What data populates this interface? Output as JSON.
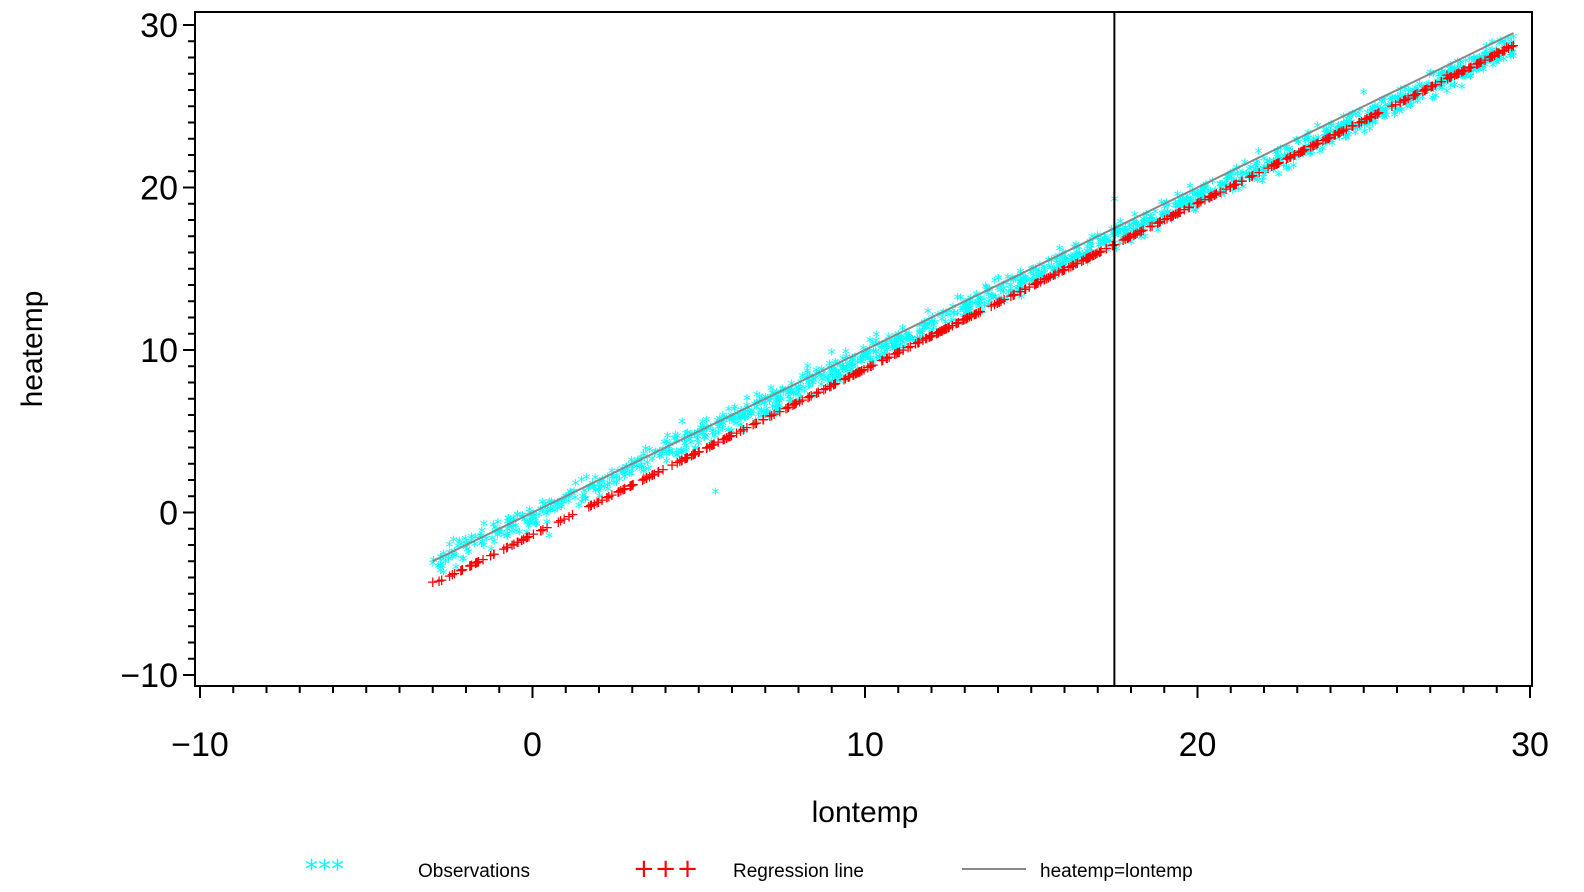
{
  "chart_data": {
    "type": "scatter",
    "xlabel": "lontemp",
    "ylabel": "heatemp",
    "xlim": [
      -10,
      30
    ],
    "ylim": [
      -10,
      30
    ],
    "xticks": [
      -10,
      0,
      10,
      20,
      30
    ],
    "yticks": [
      -10,
      0,
      10,
      20,
      30
    ],
    "grid": false,
    "reference_line_x": 17.5,
    "legend_position": "bottom",
    "series": [
      {
        "name": "Observations",
        "kind": "scatter",
        "marker": "*",
        "color": "#00ffff",
        "approx_relation": "heatemp ≈ 0.98·lontemp − 0.3 (±1.5)",
        "x_range": [
          -3,
          29.5
        ],
        "points_sample": [
          [
            -3.0,
            -3.2
          ],
          [
            -2.0,
            -2.2
          ],
          [
            -1.0,
            -1.3
          ],
          [
            0.0,
            -0.4
          ],
          [
            0.5,
            -1.5
          ],
          [
            1.0,
            0.9
          ],
          [
            2.0,
            1.7
          ],
          [
            3.0,
            2.6
          ],
          [
            4.0,
            3.8
          ],
          [
            4.5,
            5.5
          ],
          [
            5.0,
            4.2
          ],
          [
            5.5,
            1.2
          ],
          [
            6.0,
            5.8
          ],
          [
            7.0,
            6.9
          ],
          [
            8.0,
            7.6
          ],
          [
            9.0,
            9.8
          ],
          [
            10.0,
            9.5
          ],
          [
            11.0,
            10.9
          ],
          [
            12.0,
            11.6
          ],
          [
            13.0,
            12.8
          ],
          [
            14.0,
            13.7
          ],
          [
            15.0,
            14.9
          ],
          [
            16.0,
            15.6
          ],
          [
            17.0,
            16.8
          ],
          [
            17.5,
            19.2
          ],
          [
            18.0,
            17.6
          ],
          [
            19.0,
            18.9
          ],
          [
            20.0,
            19.5
          ],
          [
            21.0,
            20.8
          ],
          [
            22.0,
            21.7
          ],
          [
            23.0,
            22.8
          ],
          [
            24.0,
            23.4
          ],
          [
            25.0,
            25.8
          ],
          [
            26.0,
            25.4
          ],
          [
            27.0,
            27.0
          ],
          [
            28.0,
            27.2
          ],
          [
            29.5,
            28.0
          ],
          [
            29.5,
            29.2
          ]
        ]
      },
      {
        "name": "Regression line",
        "kind": "line-markers",
        "marker": "+",
        "color": "#ff0000",
        "intercept": -1.3,
        "slope": 1.02,
        "x_range": [
          -3,
          29.5
        ]
      },
      {
        "name": "heatemp=lontemp",
        "kind": "line",
        "color": "#888888",
        "intercept": 0,
        "slope": 1,
        "x_range": [
          -3,
          29.5
        ]
      }
    ]
  },
  "legend": {
    "observations_symbol": "***",
    "observations_label": "Observations",
    "regression_symbol": "+++",
    "regression_label": "Regression line",
    "identity_label": "heatemp=lontemp"
  }
}
